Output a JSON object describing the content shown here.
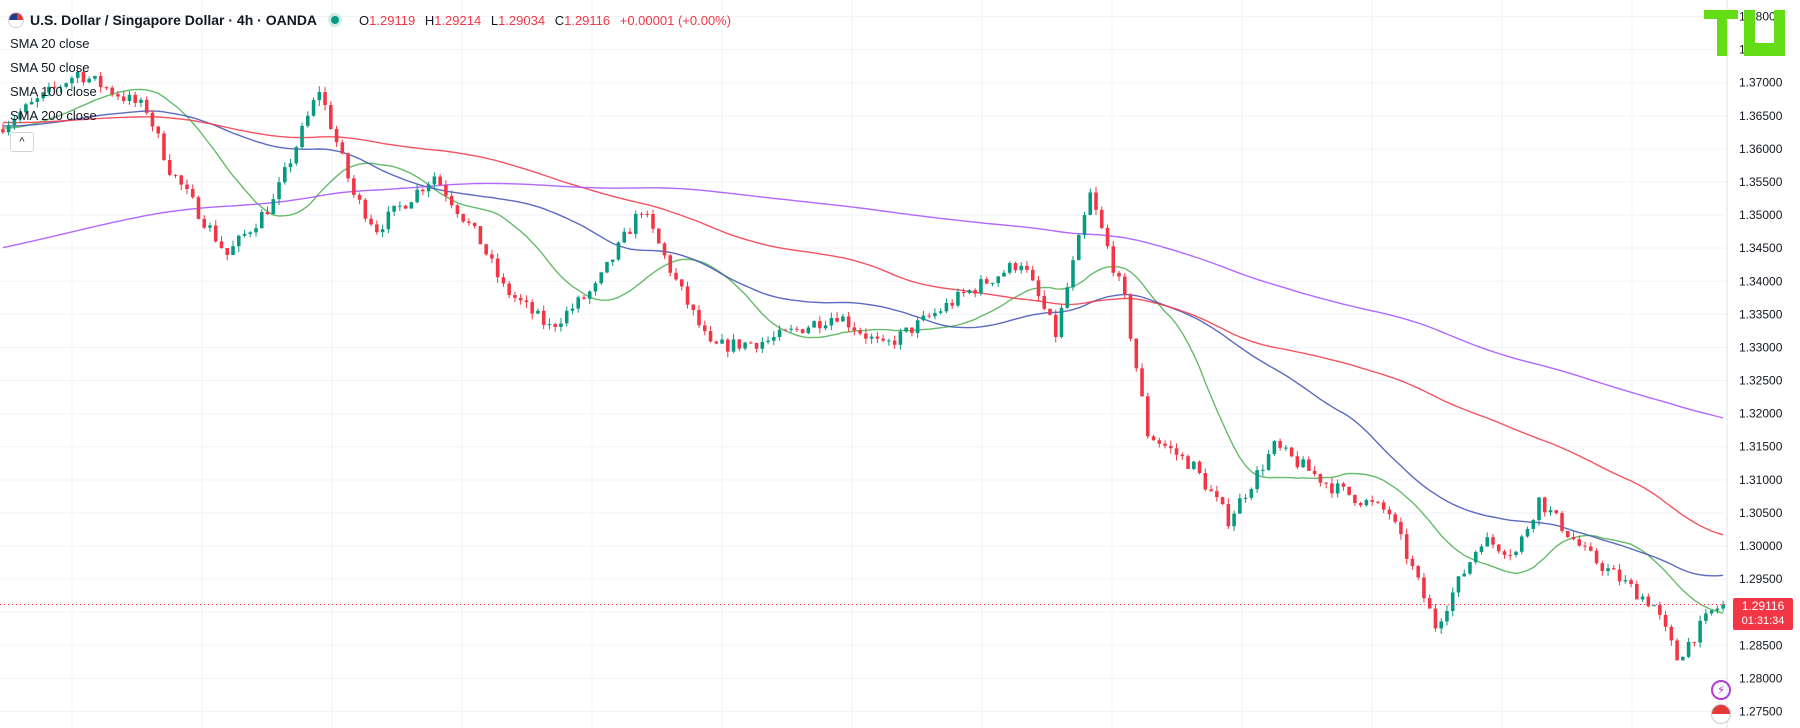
{
  "header": {
    "symbol": "U.S. Dollar / Singapore Dollar · 4h · OANDA",
    "open_label": "O",
    "open_value": "1.29119",
    "high_label": "H",
    "high_value": "1.29214",
    "low_label": "L",
    "low_value": "1.29034",
    "close_label": "C",
    "close_value": "1.29116",
    "change": "+0.00001 (+0.00%)",
    "icons": [
      "usd-flag-icon",
      "market-status-icon"
    ]
  },
  "legend": {
    "items": [
      "SMA 20 close",
      "SMA 50 close",
      "SMA 100 close",
      "SMA 200 close"
    ],
    "collapse_glyph": "^"
  },
  "last_price": {
    "value": "1.29116",
    "countdown": "01:31:34"
  },
  "logo": {
    "text": "TV",
    "color": "#64dd17"
  },
  "axis_icons": [
    "lightning-icon",
    "us-flag-icon"
  ],
  "colors": {
    "up": "#089981",
    "down": "#f23645",
    "sma20": "#4caf50",
    "sma50": "#3f51b5",
    "sma100": "#f23645",
    "sma200": "#a64dff",
    "grid": "#f0f3fa",
    "axis_text": "#131722"
  },
  "chart_data": {
    "type": "line",
    "ylim": [
      1.2725,
      1.3825
    ],
    "y_ticks": [
      "1.38000",
      "1.37500",
      "1.37000",
      "1.36500",
      "1.36000",
      "1.35500",
      "1.35000",
      "1.34500",
      "1.34000",
      "1.33500",
      "1.33000",
      "1.32500",
      "1.32000",
      "1.31500",
      "1.31000",
      "1.30500",
      "1.30000",
      "1.29500",
      "1.29000",
      "1.28500",
      "1.28000",
      "1.27500"
    ],
    "n_bars": 300,
    "price_path": [
      [
        0,
        1.363
      ],
      [
        14,
        1.3715
      ],
      [
        26,
        1.366
      ],
      [
        30,
        1.357
      ],
      [
        40,
        1.344
      ],
      [
        48,
        1.352
      ],
      [
        56,
        1.369
      ],
      [
        62,
        1.353
      ],
      [
        66,
        1.348
      ],
      [
        76,
        1.356
      ],
      [
        84,
        1.346
      ],
      [
        88,
        1.339
      ],
      [
        96,
        1.333
      ],
      [
        104,
        1.339
      ],
      [
        112,
        1.351
      ],
      [
        118,
        1.34
      ],
      [
        124,
        1.33
      ],
      [
        134,
        1.331
      ],
      [
        146,
        1.335
      ],
      [
        154,
        1.33
      ],
      [
        168,
        1.338
      ],
      [
        178,
        1.343
      ],
      [
        184,
        1.332
      ],
      [
        190,
        1.353
      ],
      [
        196,
        1.337
      ],
      [
        200,
        1.317
      ],
      [
        208,
        1.312
      ],
      [
        214,
        1.304
      ],
      [
        222,
        1.315
      ],
      [
        232,
        1.309
      ],
      [
        242,
        1.305
      ],
      [
        250,
        1.288
      ],
      [
        258,
        1.301
      ],
      [
        264,
        1.299
      ],
      [
        268,
        1.307
      ],
      [
        276,
        1.299
      ],
      [
        288,
        1.291
      ],
      [
        292,
        1.283
      ],
      [
        298,
        1.29
      ],
      [
        300,
        1.2912
      ]
    ],
    "series": [
      {
        "name": "SMA 20 close",
        "period": 20
      },
      {
        "name": "SMA 50 close",
        "period": 50
      },
      {
        "name": "SMA 100 close",
        "period": 100
      },
      {
        "name": "SMA 200 close",
        "period": 200
      }
    ],
    "last_price_line": 1.29116,
    "grid": true,
    "y_axis_position": "right"
  }
}
